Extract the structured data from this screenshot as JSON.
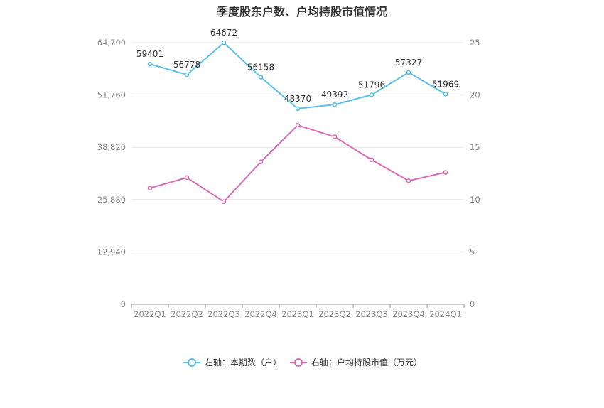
{
  "chart_data": {
    "type": "line",
    "title": "季度股东户数、户均持股市值情况",
    "categories": [
      "2022Q1",
      "2022Q2",
      "2022Q3",
      "2022Q4",
      "2023Q1",
      "2023Q2",
      "2023Q3",
      "2023Q4",
      "2024Q1"
    ],
    "left_axis": {
      "ylim": [
        0,
        64700
      ],
      "ticks": [
        0,
        12940,
        25880,
        38820,
        51760,
        64700
      ],
      "tick_labels": [
        "0",
        "12,940",
        "25,880",
        "38,820",
        "51,760",
        "64,700"
      ]
    },
    "right_axis": {
      "ylim": [
        0,
        25
      ],
      "ticks": [
        0,
        5,
        10,
        15,
        20,
        25
      ],
      "tick_labels": [
        "0",
        "5",
        "10",
        "15",
        "20",
        "25"
      ]
    },
    "series": [
      {
        "name": "左轴：本期数（户）",
        "axis": "left",
        "color": "#5bc0eb",
        "values": [
          59401,
          56778,
          64672,
          56158,
          48370,
          49392,
          51796,
          57327,
          51969
        ],
        "labels": [
          "59401",
          "56778",
          "64672",
          "56158",
          "48370",
          "49392",
          "51796",
          "57327",
          "51969"
        ]
      },
      {
        "name": "右轴：户均持股市值（万元）",
        "axis": "right",
        "color": "#d96bb5",
        "values": [
          11.1,
          12.1,
          9.8,
          13.6,
          17.1,
          16.0,
          13.8,
          11.8,
          12.6
        ]
      }
    ],
    "grid": true,
    "legend_position": "bottom"
  }
}
